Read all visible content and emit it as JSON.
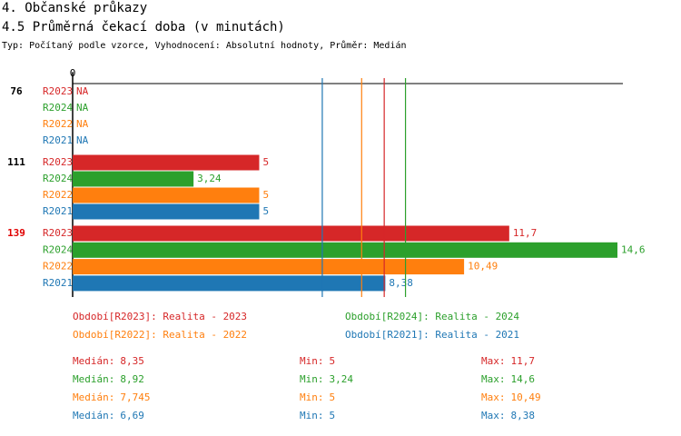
{
  "chart_data": {
    "type": "bar",
    "orientation": "horizontal",
    "title": "4. Občanské průkazy",
    "subtitle": "4.5 Průměrná čekací doba (v minutách)",
    "note": "Typ: Počítaný podle vzorce, Vyhodnocení: Absolutní hodnoty, Průměr: Medián",
    "categories": [
      "76",
      "111",
      "139"
    ],
    "category_colors": [
      "#000000",
      "#000000",
      "#e00000"
    ],
    "xlim": [
      0,
      14.6
    ],
    "xticks": [
      0
    ],
    "stat_names": {
      "median": "Medián:",
      "min": "Min:",
      "max": "Max:"
    },
    "series": [
      {
        "name": "R2023",
        "color": "#d62728",
        "legend_label": "Období[R2023]: Realita - 2023",
        "values": [
          null,
          5,
          11.7
        ],
        "value_labels": [
          "NA",
          "5",
          "11,7"
        ],
        "stats": {
          "median": {
            "value": 8.35,
            "label": "8,35"
          },
          "min": {
            "value": 5,
            "label": "5"
          },
          "max": {
            "value": 11.7,
            "label": "11,7"
          }
        }
      },
      {
        "name": "R2024",
        "color": "#2ca02c",
        "legend_label": "Období[R2024]: Realita - 2024",
        "values": [
          null,
          3.24,
          14.6
        ],
        "value_labels": [
          "NA",
          "3,24",
          "14,6"
        ],
        "stats": {
          "median": {
            "value": 8.92,
            "label": "8,92"
          },
          "min": {
            "value": 3.24,
            "label": "3,24"
          },
          "max": {
            "value": 14.6,
            "label": "14,6"
          }
        }
      },
      {
        "name": "R2022",
        "color": "#ff7f0e",
        "legend_label": "Období[R2022]: Realita - 2022",
        "values": [
          null,
          5,
          10.49
        ],
        "value_labels": [
          "NA",
          "5",
          "10,49"
        ],
        "stats": {
          "median": {
            "value": 7.745,
            "label": "7,745"
          },
          "min": {
            "value": 5,
            "label": "5"
          },
          "max": {
            "value": 10.49,
            "label": "10,49"
          }
        }
      },
      {
        "name": "R2021",
        "color": "#1f77b4",
        "legend_label": "Období[R2021]: Realita - 2021",
        "values": [
          null,
          5,
          8.38
        ],
        "value_labels": [
          "NA",
          "5",
          "8,38"
        ],
        "stats": {
          "median": {
            "value": 6.69,
            "label": "6,69"
          },
          "min": {
            "value": 5,
            "label": "5"
          },
          "max": {
            "value": 8.38,
            "label": "8,38"
          }
        }
      }
    ]
  }
}
